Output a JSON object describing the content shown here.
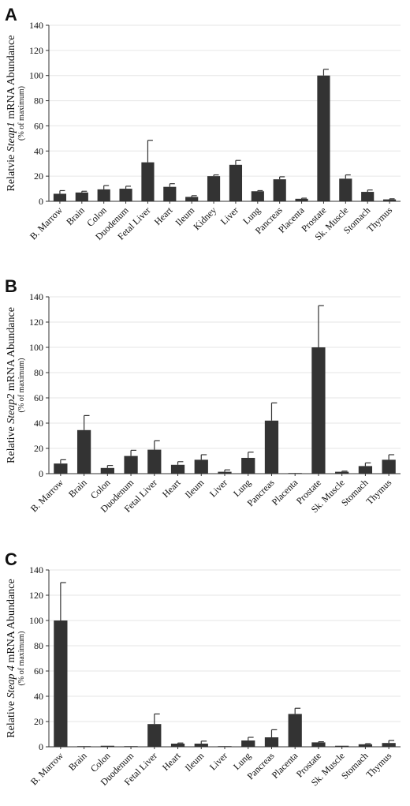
{
  "chart_data": [
    {
      "type": "bar",
      "panel": "A",
      "ylabel": {
        "pre": "Relatvie ",
        "gene": "Steap1",
        "post": " mRNA Abundance",
        "sub": "(% of maximum)"
      },
      "yticks": [
        0,
        20,
        40,
        60,
        80,
        100,
        120,
        140
      ],
      "ylim": [
        0,
        140
      ],
      "categories": [
        "B. Marrow",
        "Brain",
        "Colon",
        "Duodenum",
        "Fetal Liver",
        "Heart",
        "Ileum",
        "Kidney",
        "Liver",
        "Lung",
        "Pancreas",
        "Placenta",
        "Prostate",
        "Sk. Muscle",
        "Stomach",
        "Thymus"
      ],
      "values": [
        6,
        7,
        9.5,
        10,
        31,
        11.5,
        3.5,
        20,
        29,
        8,
        17.5,
        2,
        100,
        18,
        7.5,
        1.5
      ],
      "errors": [
        2.5,
        1,
        3,
        2,
        17.5,
        2.5,
        1,
        1,
        3.5,
        0.5,
        2,
        0.5,
        5,
        3,
        1.5,
        0.5
      ],
      "bar_color": "#333333"
    },
    {
      "type": "bar",
      "panel": "B",
      "ylabel": {
        "pre": "Relative ",
        "gene": "Steap2",
        "post": " mRNA Abundance",
        "sub": "(% of maximum)"
      },
      "yticks": [
        0,
        20,
        40,
        60,
        80,
        100,
        120,
        140
      ],
      "ylim": [
        0,
        140
      ],
      "categories": [
        "B. Marrow",
        "Brain",
        "Colon",
        "Duodenum",
        "Fetal Liver",
        "Heart",
        "Ileum",
        "Liver",
        "Lung",
        "Pancreas",
        "Placenta",
        "Prostate",
        "Sk. Muscle",
        "Stomach",
        "Thymus"
      ],
      "values": [
        8,
        34.5,
        4.5,
        14,
        19,
        7,
        11,
        1.5,
        12.5,
        42,
        0.5,
        100,
        1.5,
        6,
        11
      ],
      "errors": [
        3,
        11.5,
        2,
        4.5,
        7,
        2.5,
        4,
        1.5,
        4.5,
        14,
        0,
        33,
        0.5,
        2.5,
        4
      ],
      "bar_color": "#333333"
    },
    {
      "type": "bar",
      "panel": "C",
      "ylabel": {
        "pre": "Relative ",
        "gene": "Steap 4",
        "post": " mRNA Abundance",
        "sub": "(% of maximum)"
      },
      "yticks": [
        0,
        20,
        40,
        60,
        80,
        100,
        120,
        140
      ],
      "ylim": [
        0,
        140
      ],
      "categories": [
        "B. Marrow",
        "Brain",
        "Colon",
        "Duodenum",
        "Fetal Liver",
        "Heart",
        "Ileum",
        "Liver",
        "Lung",
        "Pancreas",
        "Placenta",
        "Prostate",
        "Sk. Muscle",
        "Stomach",
        "Thymus"
      ],
      "values": [
        100,
        0.3,
        0.8,
        0.5,
        18,
        2.5,
        2.5,
        0.3,
        5,
        7.5,
        26,
        3.5,
        0.8,
        2,
        3
      ],
      "errors": [
        30,
        0,
        0,
        0,
        8,
        0.5,
        2,
        0,
        2.5,
        6,
        4.5,
        0.5,
        0,
        0.5,
        2
      ],
      "bar_color": "#333333"
    }
  ]
}
